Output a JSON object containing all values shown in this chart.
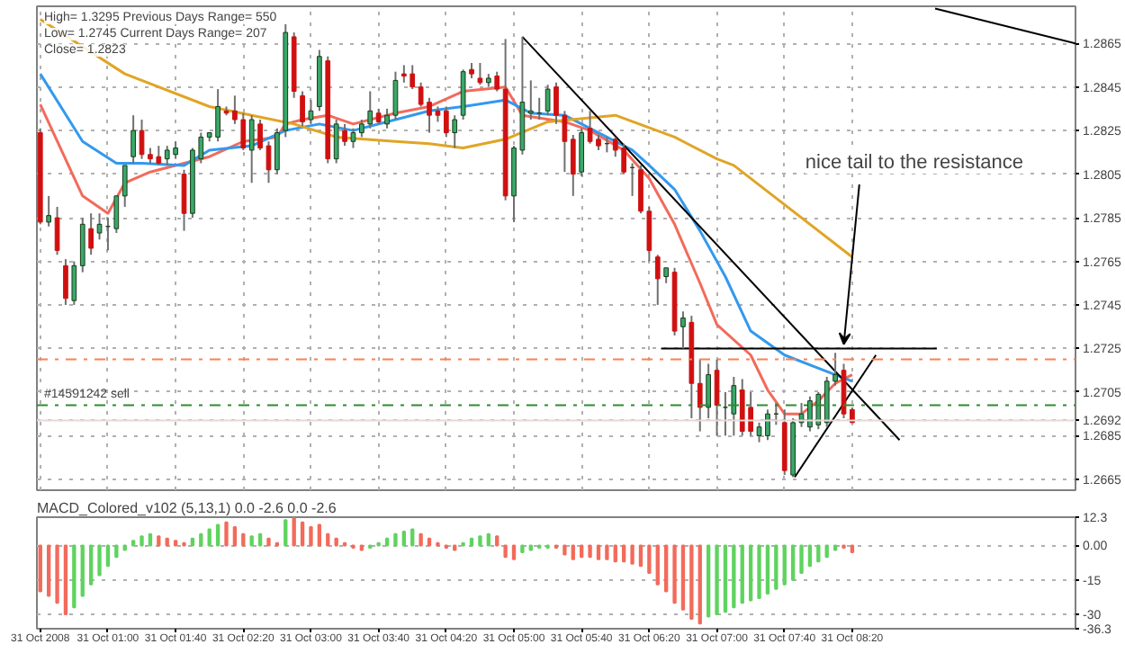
{
  "chart_data": [
    {
      "type": "candlestick",
      "x": [
        "2008-10-31T00:20",
        "2008-10-31T00:25",
        "2008-10-31T00:30",
        "2008-10-31T00:35",
        "2008-10-31T00:40",
        "2008-10-31T00:45",
        "2008-10-31T00:50",
        "2008-10-31T00:55",
        "2008-10-31T01:00",
        "2008-10-31T01:05",
        "2008-10-31T01:10",
        "2008-10-31T01:15",
        "2008-10-31T01:20",
        "2008-10-31T01:25",
        "2008-10-31T01:30",
        "2008-10-31T01:35",
        "2008-10-31T01:40",
        "2008-10-31T01:45",
        "2008-10-31T01:50",
        "2008-10-31T01:55",
        "2008-10-31T02:00",
        "2008-10-31T02:05",
        "2008-10-31T02:10",
        "2008-10-31T02:15",
        "2008-10-31T02:20",
        "2008-10-31T02:25",
        "2008-10-31T02:30",
        "2008-10-31T02:35",
        "2008-10-31T02:40",
        "2008-10-31T02:45",
        "2008-10-31T02:50",
        "2008-10-31T02:55",
        "2008-10-31T03:00",
        "2008-10-31T03:05",
        "2008-10-31T03:10",
        "2008-10-31T03:15",
        "2008-10-31T03:20",
        "2008-10-31T03:25",
        "2008-10-31T03:30",
        "2008-10-31T03:35",
        "2008-10-31T03:40",
        "2008-10-31T03:45",
        "2008-10-31T03:50",
        "2008-10-31T03:55",
        "2008-10-31T04:00",
        "2008-10-31T04:05",
        "2008-10-31T04:10",
        "2008-10-31T04:15",
        "2008-10-31T04:20",
        "2008-10-31T04:25",
        "2008-10-31T04:30",
        "2008-10-31T04:35",
        "2008-10-31T04:40",
        "2008-10-31T04:45",
        "2008-10-31T04:50",
        "2008-10-31T04:55",
        "2008-10-31T05:00",
        "2008-10-31T05:05",
        "2008-10-31T05:10",
        "2008-10-31T05:15",
        "2008-10-31T05:20",
        "2008-10-31T05:25",
        "2008-10-31T05:30",
        "2008-10-31T05:35",
        "2008-10-31T05:40",
        "2008-10-31T05:45",
        "2008-10-31T05:50",
        "2008-10-31T05:55",
        "2008-10-31T06:00",
        "2008-10-31T06:05",
        "2008-10-31T06:10",
        "2008-10-31T06:15",
        "2008-10-31T06:20",
        "2008-10-31T06:25",
        "2008-10-31T06:30",
        "2008-10-31T06:35",
        "2008-10-31T06:40",
        "2008-10-31T06:45",
        "2008-10-31T06:50",
        "2008-10-31T06:55",
        "2008-10-31T07:00",
        "2008-10-31T07:05",
        "2008-10-31T07:10",
        "2008-10-31T07:15",
        "2008-10-31T07:20",
        "2008-10-31T07:25",
        "2008-10-31T07:30",
        "2008-10-31T07:35",
        "2008-10-31T07:40",
        "2008-10-31T07:45",
        "2008-10-31T07:50",
        "2008-10-31T07:55",
        "2008-10-31T08:00",
        "2008-10-31T08:05",
        "2008-10-31T08:10",
        "2008-10-31T08:15",
        "2008-10-31T08:20"
      ],
      "ohlc": [
        [
          1.2824,
          1.2826,
          1.2782,
          1.2783
        ],
        [
          1.2783,
          1.2795,
          1.2781,
          1.2786
        ],
        [
          1.2785,
          1.279,
          1.2768,
          1.277
        ],
        [
          1.2763,
          1.2766,
          1.2745,
          1.2748
        ],
        [
          1.2747,
          1.2765,
          1.2745,
          1.2763
        ],
        [
          1.2763,
          1.2785,
          1.276,
          1.2782
        ],
        [
          1.278,
          1.2787,
          1.2768,
          1.2771
        ],
        [
          1.2778,
          1.2787,
          1.2775,
          1.2782
        ],
        [
          1.2781,
          1.2785,
          1.277,
          1.2781
        ],
        [
          1.278,
          1.2795,
          1.2778,
          1.2795
        ],
        [
          1.2795,
          1.2809,
          1.279,
          1.2809
        ],
        [
          1.2813,
          1.2832,
          1.281,
          1.2825
        ],
        [
          1.2825,
          1.283,
          1.2812,
          1.2814
        ],
        [
          1.2814,
          1.2817,
          1.281,
          1.2812
        ],
        [
          1.2813,
          1.2818,
          1.2809,
          1.281
        ],
        [
          1.2812,
          1.2818,
          1.2809,
          1.2816
        ],
        [
          1.2814,
          1.282,
          1.2812,
          1.2817
        ],
        [
          1.2805,
          1.2807,
          1.2779,
          1.2787
        ],
        [
          1.2787,
          1.2817,
          1.2785,
          1.2816
        ],
        [
          1.2812,
          1.2824,
          1.281,
          1.2822
        ],
        [
          1.2822,
          1.2824,
          1.282,
          1.2824
        ],
        [
          1.2822,
          1.2844,
          1.282,
          1.2836
        ],
        [
          1.2834,
          1.2836,
          1.2832,
          1.2833
        ],
        [
          1.2834,
          1.2841,
          1.2828,
          1.283
        ],
        [
          1.283,
          1.2833,
          1.2816,
          1.2817
        ],
        [
          1.2816,
          1.2832,
          1.2801,
          1.283
        ],
        [
          1.2828,
          1.283,
          1.2816,
          1.2817
        ],
        [
          1.2818,
          1.282,
          1.2801,
          1.2807
        ],
        [
          1.2807,
          1.2826,
          1.2805,
          1.2824
        ],
        [
          1.2825,
          1.2874,
          1.2822,
          1.287
        ],
        [
          1.2868,
          1.287,
          1.284,
          1.2843
        ],
        [
          1.2841,
          1.2843,
          1.2827,
          1.2829
        ],
        [
          1.283,
          1.2839,
          1.2828,
          1.2834
        ],
        [
          1.2836,
          1.2862,
          1.2834,
          1.2859
        ],
        [
          1.2857,
          1.2859,
          1.281,
          1.2812
        ],
        [
          1.2812,
          1.283,
          1.281,
          1.2828
        ],
        [
          1.2825,
          1.2828,
          1.2818,
          1.282
        ],
        [
          1.282,
          1.2826,
          1.2817,
          1.2824
        ],
        [
          1.2824,
          1.283,
          1.2822,
          1.2828
        ],
        [
          1.2828,
          1.2843,
          1.2826,
          1.2834
        ],
        [
          1.2833,
          1.2835,
          1.2828,
          1.2829
        ],
        [
          1.2828,
          1.2835,
          1.2826,
          1.2832
        ],
        [
          1.2832,
          1.2852,
          1.283,
          1.2848
        ],
        [
          1.2851,
          1.2855,
          1.2847,
          1.285
        ],
        [
          1.2851,
          1.2855,
          1.2844,
          1.2845
        ],
        [
          1.2845,
          1.2847,
          1.2836,
          1.2837
        ],
        [
          1.2838,
          1.284,
          1.2824,
          1.2832
        ],
        [
          1.2834,
          1.2836,
          1.2829,
          1.2832
        ],
        [
          1.2834,
          1.2836,
          1.2822,
          1.2824
        ],
        [
          1.2824,
          1.2832,
          1.2817,
          1.283
        ],
        [
          1.2832,
          1.2853,
          1.283,
          1.2852
        ],
        [
          1.2853,
          1.2856,
          1.2849,
          1.2851
        ],
        [
          1.2849,
          1.2856,
          1.2846,
          1.2847
        ],
        [
          1.2847,
          1.2851,
          1.2845,
          1.2849
        ],
        [
          1.285,
          1.2852,
          1.2843,
          1.2844
        ],
        [
          1.2844,
          1.2867,
          1.2793,
          1.2795
        ],
        [
          1.2795,
          1.2818,
          1.2783,
          1.2817
        ],
        [
          1.2816,
          1.2868,
          1.2814,
          1.2838
        ],
        [
          1.2833,
          1.2848,
          1.283,
          1.2834
        ],
        [
          1.2833,
          1.284,
          1.283,
          1.2833
        ],
        [
          1.2834,
          1.2846,
          1.2832,
          1.2844
        ],
        [
          1.2845,
          1.2847,
          1.2828,
          1.2832
        ],
        [
          1.2832,
          1.2834,
          1.2806,
          1.282
        ],
        [
          1.2821,
          1.2823,
          1.2795,
          1.2805
        ],
        [
          1.2806,
          1.2826,
          1.2804,
          1.2824
        ],
        [
          1.2826,
          1.2834,
          1.2819,
          1.282
        ],
        [
          1.2821,
          1.2823,
          1.2816,
          1.2818
        ],
        [
          1.2819,
          1.2822,
          1.2815,
          1.2819
        ],
        [
          1.2821,
          1.2822,
          1.2813,
          1.2816
        ],
        [
          1.2817,
          1.2819,
          1.2805,
          1.2806
        ],
        [
          1.2808,
          1.281,
          1.2795,
          1.2808
        ],
        [
          1.2807,
          1.2809,
          1.2787,
          1.2788
        ],
        [
          1.2788,
          1.279,
          1.2765,
          1.277
        ],
        [
          1.2767,
          1.2768,
          1.2745,
          1.2757
        ],
        [
          1.2758,
          1.2762,
          1.2755,
          1.2762
        ],
        [
          1.276,
          1.2762,
          1.2731,
          1.2733
        ],
        [
          1.2735,
          1.2742,
          1.2725,
          1.2739
        ],
        [
          1.2737,
          1.274,
          1.2693,
          1.2709
        ],
        [
          1.2709,
          1.272,
          1.2687,
          1.2698
        ],
        [
          1.2698,
          1.2718,
          1.2693,
          1.2713
        ],
        [
          1.2715,
          1.272,
          1.2685,
          1.2699
        ],
        [
          1.2698,
          1.2705,
          1.2685,
          1.2698
        ],
        [
          1.2695,
          1.2712,
          1.2685,
          1.2708
        ],
        [
          1.2706,
          1.2711,
          1.2685,
          1.2687
        ],
        [
          1.2698,
          1.2705,
          1.2685,
          1.2687
        ],
        [
          1.2685,
          1.2691,
          1.2682,
          1.2689
        ],
        [
          1.2685,
          1.2697,
          1.2683,
          1.2695
        ],
        [
          1.2695,
          1.27,
          1.269,
          1.2695
        ],
        [
          1.2691,
          1.2697,
          1.2667,
          1.2669
        ],
        [
          1.2667,
          1.2693,
          1.2666,
          1.2691
        ],
        [
          1.2691,
          1.27,
          1.2689,
          1.2695
        ],
        [
          1.2689,
          1.2703,
          1.2687,
          1.2701
        ],
        [
          1.269,
          1.2705,
          1.2688,
          1.2704
        ],
        [
          1.2691,
          1.2712,
          1.2689,
          1.271
        ],
        [
          1.271,
          1.2723,
          1.2708,
          1.2713
        ],
        [
          1.2715,
          1.2718,
          1.2693,
          1.2695
        ],
        [
          1.2697,
          1.2698,
          1.2691,
          1.2691
        ]
      ],
      "series": [
        {
          "type": "line",
          "color": "#f26b5b",
          "x": [
            "2008-10-31T00:20",
            "2008-10-31T00:45",
            "2008-10-31T01:00",
            "2008-10-31T01:10",
            "2008-10-31T01:25",
            "2008-10-31T01:45",
            "2008-10-31T02:00",
            "2008-10-31T02:20",
            "2008-10-31T02:40",
            "2008-10-31T02:45",
            "2008-10-31T02:55",
            "2008-10-31T03:10",
            "2008-10-31T03:25",
            "2008-10-31T03:50",
            "2008-10-31T04:10",
            "2008-10-31T04:30",
            "2008-10-31T04:55",
            "2008-10-31T05:05",
            "2008-10-31T05:30",
            "2008-10-31T05:45",
            "2008-10-31T06:05",
            "2008-10-31T06:20",
            "2008-10-31T06:35",
            "2008-10-31T06:50",
            "2008-10-31T07:00",
            "2008-10-31T07:20",
            "2008-10-31T07:30",
            "2008-10-31T07:40",
            "2008-10-31T07:50",
            "2008-10-31T08:00",
            "2008-10-31T08:10",
            "2008-10-31T08:20"
          ],
          "values": [
            1.2837,
            1.2795,
            1.2787,
            1.2801,
            1.2806,
            1.281,
            1.2813,
            1.282,
            1.2822,
            1.2828,
            1.283,
            1.2832,
            1.2828,
            1.2833,
            1.2836,
            1.2843,
            1.2845,
            1.2832,
            1.2829,
            1.2825,
            1.2816,
            1.2803,
            1.2782,
            1.2755,
            1.2736,
            1.2722,
            1.2706,
            1.2695,
            1.2695,
            1.2701,
            1.2709,
            1.2713
          ]
        },
        {
          "type": "line",
          "color": "#3399ee",
          "x": [
            "2008-10-31T00:20",
            "2008-10-31T00:45",
            "2008-10-31T01:05",
            "2008-10-31T01:20",
            "2008-10-31T01:45",
            "2008-10-31T02:00",
            "2008-10-31T02:25",
            "2008-10-31T02:45",
            "2008-10-31T03:05",
            "2008-10-31T03:25",
            "2008-10-31T03:50",
            "2008-10-31T04:10",
            "2008-10-31T04:30",
            "2008-10-31T04:55",
            "2008-10-31T05:10",
            "2008-10-31T05:30",
            "2008-10-31T05:50",
            "2008-10-31T06:10",
            "2008-10-31T06:20",
            "2008-10-31T06:35",
            "2008-10-31T06:50",
            "2008-10-31T07:05",
            "2008-10-31T07:20",
            "2008-10-31T07:40",
            "2008-10-31T08:00",
            "2008-10-31T08:20"
          ],
          "values": [
            1.2851,
            1.282,
            1.281,
            1.281,
            1.2809,
            1.2816,
            1.2818,
            1.2825,
            1.2828,
            1.2825,
            1.283,
            1.2834,
            1.2836,
            1.2839,
            1.2833,
            1.2832,
            1.2824,
            1.2816,
            1.2809,
            1.2798,
            1.2779,
            1.2758,
            1.2733,
            1.2722,
            1.2716,
            1.271
          ]
        },
        {
          "type": "line",
          "color": "#e0a526",
          "x": [
            "2008-10-31T00:20",
            "2008-10-31T01:10",
            "2008-10-31T02:00",
            "2008-10-31T02:25",
            "2008-10-31T02:50",
            "2008-10-31T03:15",
            "2008-10-31T03:50",
            "2008-10-31T04:10",
            "2008-10-31T04:30",
            "2008-10-31T04:55",
            "2008-10-31T05:20",
            "2008-10-31T06:00",
            "2008-10-31T06:35",
            "2008-10-31T07:00",
            "2008-10-31T07:10",
            "2008-10-31T08:20"
          ],
          "values": [
            1.2876,
            1.2851,
            1.2836,
            1.2832,
            1.2828,
            1.2822,
            1.282,
            1.2819,
            1.2817,
            1.2821,
            1.2829,
            1.2832,
            1.2822,
            1.2812,
            1.2809,
            1.2767
          ]
        },
        {
          "type": "line",
          "color": "#000000",
          "x": [
            "2008-10-31T05:05",
            "2008-10-31T08:48"
          ],
          "values": [
            1.2868,
            1.2683
          ]
        },
        {
          "type": "line",
          "color": "#000000",
          "x": [
            "2008-10-31T06:27",
            "2008-10-31T09:10"
          ],
          "values": [
            1.2725,
            1.2725
          ]
        },
        {
          "type": "line",
          "color": "#000000",
          "x": [
            "2008-10-31T09:09",
            "2008-10-31T10:32"
          ],
          "values": [
            1.2881,
            1.2865
          ]
        },
        {
          "type": "line",
          "color": "#000000",
          "x": [
            "2008-10-31T07:46",
            "2008-10-31T08:34"
          ],
          "values": [
            1.2666,
            1.2722
          ]
        }
      ],
      "xlim": [
        "2008-10-31T00:18",
        "2008-10-31T10:32"
      ],
      "xticks": [
        {
          "value": "2008-10-31T00:20",
          "label": null
        },
        {
          "value": "2008-10-31T01:00",
          "label": null
        },
        {
          "value": "2008-10-31T01:40",
          "label": null
        },
        {
          "value": "2008-10-31T02:20",
          "label": null
        },
        {
          "value": "2008-10-31T03:00",
          "label": null
        },
        {
          "value": "2008-10-31T03:40",
          "label": null
        },
        {
          "value": "2008-10-31T04:20",
          "label": null
        },
        {
          "value": "2008-10-31T05:00",
          "label": null
        },
        {
          "value": "2008-10-31T05:40",
          "label": null
        },
        {
          "value": "2008-10-31T06:20",
          "label": null
        },
        {
          "value": "2008-10-31T07:00",
          "label": null
        },
        {
          "value": "2008-10-31T07:40",
          "label": null
        },
        {
          "value": "2008-10-31T08:20",
          "label": null
        }
      ],
      "ylim": [
        1.266,
        1.2882
      ],
      "yticks": [
        1.2865,
        1.2845,
        1.2825,
        1.2805,
        1.2785,
        1.2765,
        1.2745,
        1.2725,
        1.2705,
        1.2692,
        1.2685,
        1.2665
      ],
      "grid": true,
      "tick_labels": "y",
      "ref_lines": [
        {
          "axis": "y",
          "value": 1.272,
          "color": "#ff7f50",
          "line_style": "dashdot"
        },
        {
          "axis": "y",
          "value": 1.2699,
          "label": "#14591242 sell",
          "color": "#2e8b2e",
          "line_style": "dashdot"
        },
        {
          "axis": "y",
          "value": 1.2692,
          "color": "#e8d8d8",
          "line_style": "solid"
        }
      ],
      "annotations": [
        "High= 1.3295    Previous Days Range= 550",
        "Low= 1.2745    Current Days Range= 207",
        "Close= 1.2823",
        {
          "text": "nice tail to the resistance",
          "x": "2008-10-31T08:15",
          "y": 1.2727
        }
      ]
    },
    {
      "type": "bar",
      "title": "MACD_Colored_v102 (5,13,1) 0.0 -2.6 0.0 -2.6",
      "x": [
        "2008-10-31T00:20",
        "2008-10-31T00:25",
        "2008-10-31T00:30",
        "2008-10-31T00:35",
        "2008-10-31T00:40",
        "2008-10-31T00:45",
        "2008-10-31T00:50",
        "2008-10-31T00:55",
        "2008-10-31T01:00",
        "2008-10-31T01:05",
        "2008-10-31T01:10",
        "2008-10-31T01:15",
        "2008-10-31T01:20",
        "2008-10-31T01:25",
        "2008-10-31T01:30",
        "2008-10-31T01:35",
        "2008-10-31T01:40",
        "2008-10-31T01:45",
        "2008-10-31T01:50",
        "2008-10-31T01:55",
        "2008-10-31T02:00",
        "2008-10-31T02:05",
        "2008-10-31T02:10",
        "2008-10-31T02:15",
        "2008-10-31T02:20",
        "2008-10-31T02:25",
        "2008-10-31T02:30",
        "2008-10-31T02:35",
        "2008-10-31T02:40",
        "2008-10-31T02:45",
        "2008-10-31T02:50",
        "2008-10-31T02:55",
        "2008-10-31T03:00",
        "2008-10-31T03:05",
        "2008-10-31T03:10",
        "2008-10-31T03:15",
        "2008-10-31T03:20",
        "2008-10-31T03:25",
        "2008-10-31T03:30",
        "2008-10-31T03:35",
        "2008-10-31T03:40",
        "2008-10-31T03:45",
        "2008-10-31T03:50",
        "2008-10-31T03:55",
        "2008-10-31T04:00",
        "2008-10-31T04:05",
        "2008-10-31T04:10",
        "2008-10-31T04:15",
        "2008-10-31T04:20",
        "2008-10-31T04:25",
        "2008-10-31T04:30",
        "2008-10-31T04:35",
        "2008-10-31T04:40",
        "2008-10-31T04:45",
        "2008-10-31T04:50",
        "2008-10-31T04:55",
        "2008-10-31T05:00",
        "2008-10-31T05:05",
        "2008-10-31T05:10",
        "2008-10-31T05:15",
        "2008-10-31T05:20",
        "2008-10-31T05:25",
        "2008-10-31T05:30",
        "2008-10-31T05:35",
        "2008-10-31T05:40",
        "2008-10-31T05:45",
        "2008-10-31T05:50",
        "2008-10-31T05:55",
        "2008-10-31T06:00",
        "2008-10-31T06:05",
        "2008-10-31T06:10",
        "2008-10-31T06:15",
        "2008-10-31T06:20",
        "2008-10-31T06:25",
        "2008-10-31T06:30",
        "2008-10-31T06:35",
        "2008-10-31T06:40",
        "2008-10-31T06:45",
        "2008-10-31T06:50",
        "2008-10-31T06:55",
        "2008-10-31T07:00",
        "2008-10-31T07:05",
        "2008-10-31T07:10",
        "2008-10-31T07:15",
        "2008-10-31T07:20",
        "2008-10-31T07:25",
        "2008-10-31T07:30",
        "2008-10-31T07:35",
        "2008-10-31T07:40",
        "2008-10-31T07:45",
        "2008-10-31T07:50",
        "2008-10-31T07:55",
        "2008-10-31T08:00",
        "2008-10-31T08:05",
        "2008-10-31T08:10",
        "2008-10-31T08:15",
        "2008-10-31T08:20"
      ],
      "values": [
        -20,
        -22,
        -25,
        -30,
        -27,
        -22,
        -17,
        -13,
        -9,
        -5,
        -2,
        2,
        4,
        5,
        4,
        3,
        2,
        1,
        3,
        5,
        7,
        9,
        10,
        8,
        5,
        4,
        5,
        3,
        1,
        11,
        12,
        10,
        8,
        9,
        5,
        3,
        1,
        -1,
        -2,
        -1,
        1,
        3,
        5,
        6,
        7,
        5,
        3,
        1,
        -1,
        -2,
        1,
        3,
        4,
        5,
        4,
        -5,
        -6,
        -3,
        -2,
        -1,
        -1,
        -1,
        -4,
        -6,
        -5,
        -5,
        -6,
        -6,
        -7,
        -7,
        -8,
        -9,
        -12,
        -17,
        -20,
        -25,
        -28,
        -32,
        -34,
        -31,
        -30,
        -29,
        -27,
        -25,
        -24,
        -23,
        -21,
        -19,
        -17,
        -15,
        -12,
        -9,
        -7,
        -5,
        -2,
        -1,
        -3
      ],
      "colors": [
        "#f26b5b",
        "#f26b5b",
        "#f26b5b",
        "#f26b5b",
        "#5fd35f",
        "#5fd35f",
        "#5fd35f",
        "#5fd35f",
        "#5fd35f",
        "#5fd35f",
        "#5fd35f",
        "#5fd35f",
        "#5fd35f",
        "#5fd35f",
        "#f26b5b",
        "#f26b5b",
        "#f26b5b",
        "#f26b5b",
        "#5fd35f",
        "#5fd35f",
        "#5fd35f",
        "#5fd35f",
        "#f26b5b",
        "#f26b5b",
        "#f26b5b",
        "#5fd35f",
        "#5fd35f",
        "#f26b5b",
        "#f26b5b",
        "#5fd35f",
        "#f26b5b",
        "#f26b5b",
        "#f26b5b",
        "#f26b5b",
        "#f26b5b",
        "#f26b5b",
        "#f26b5b",
        "#f26b5b",
        "#f26b5b",
        "#5fd35f",
        "#5fd35f",
        "#5fd35f",
        "#5fd35f",
        "#5fd35f",
        "#5fd35f",
        "#f26b5b",
        "#f26b5b",
        "#f26b5b",
        "#f26b5b",
        "#f26b5b",
        "#5fd35f",
        "#5fd35f",
        "#5fd35f",
        "#5fd35f",
        "#f26b5b",
        "#f26b5b",
        "#f26b5b",
        "#5fd35f",
        "#5fd35f",
        "#5fd35f",
        "#5fd35f",
        "#f26b5b",
        "#f26b5b",
        "#f26b5b",
        "#f26b5b",
        "#f26b5b",
        "#f26b5b",
        "#f26b5b",
        "#f26b5b",
        "#f26b5b",
        "#f26b5b",
        "#f26b5b",
        "#f26b5b",
        "#f26b5b",
        "#f26b5b",
        "#f26b5b",
        "#f26b5b",
        "#f26b5b",
        "#f26b5b",
        "#5fd35f",
        "#5fd35f",
        "#5fd35f",
        "#5fd35f",
        "#5fd35f",
        "#5fd35f",
        "#5fd35f",
        "#5fd35f",
        "#5fd35f",
        "#5fd35f",
        "#5fd35f",
        "#5fd35f",
        "#5fd35f",
        "#5fd35f",
        "#5fd35f",
        "#5fd35f",
        "#f26b5b",
        "#f26b5b"
      ],
      "xlim": [
        "2008-10-31T00:18",
        "2008-10-31T10:32"
      ],
      "xticks": [
        {
          "value": "2008-10-31T00:20",
          "label": "31 Oct 2008"
        },
        {
          "value": "2008-10-31T01:00",
          "label": "31 Oct 01:00"
        },
        {
          "value": "2008-10-31T01:40",
          "label": "31 Oct 01:40"
        },
        {
          "value": "2008-10-31T02:20",
          "label": "31 Oct 02:20"
        },
        {
          "value": "2008-10-31T03:00",
          "label": "31 Oct 03:00"
        },
        {
          "value": "2008-10-31T03:40",
          "label": "31 Oct 03:40"
        },
        {
          "value": "2008-10-31T04:20",
          "label": "31 Oct 04:20"
        },
        {
          "value": "2008-10-31T05:00",
          "label": "31 Oct 05:00"
        },
        {
          "value": "2008-10-31T05:40",
          "label": "31 Oct 05:40"
        },
        {
          "value": "2008-10-31T06:20",
          "label": "31 Oct 06:20"
        },
        {
          "value": "2008-10-31T07:00",
          "label": "31 Oct 07:00"
        },
        {
          "value": "2008-10-31T07:40",
          "label": "31 Oct 07:40"
        },
        {
          "value": "2008-10-31T08:20",
          "label": "31 Oct 08:20"
        }
      ],
      "ylim": [
        -36.3,
        12.3
      ],
      "yticks": [
        12.3,
        {
          "value": 0,
          "label": "0.00"
        },
        -15,
        -30,
        -36.3
      ],
      "grid": "y"
    }
  ]
}
